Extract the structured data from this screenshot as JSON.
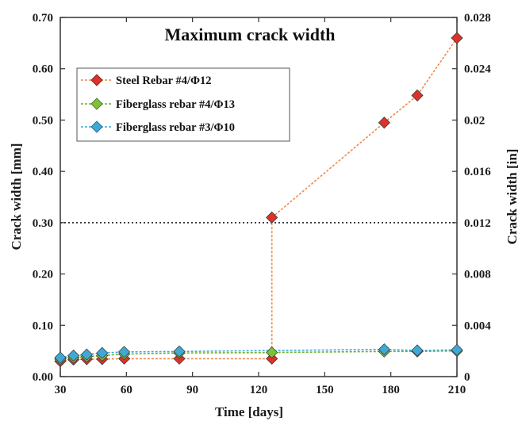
{
  "chart_data": {
    "type": "line",
    "title": "Maximum crack width",
    "xlabel": "Time [days]",
    "ylabel": "Crack width [mm]",
    "y2label": "Crack width [in]",
    "xlim": [
      30,
      210
    ],
    "ylim": [
      0,
      0.7
    ],
    "y2lim": [
      0,
      0.028
    ],
    "xticks": [
      "30",
      "60",
      "90",
      "120",
      "150",
      "180",
      "210"
    ],
    "yticks": [
      "0.00",
      "0.10",
      "0.20",
      "0.30",
      "0.40",
      "0.50",
      "0.60",
      "0.70"
    ],
    "y2ticks": [
      "0",
      "0.004",
      "0.008",
      "0.012",
      "0.016",
      "0.02",
      "0.024",
      "0.028"
    ],
    "grid": false,
    "legend_position": "upper-left",
    "reference_line": {
      "y": 0.3,
      "style": "dotted",
      "color": "#333333"
    },
    "series": [
      {
        "name": "Steel Rebar #4/Φ12",
        "color": "#d9332b",
        "line_color": "#f08a4b",
        "x": [
          30,
          36,
          42,
          49,
          59,
          84,
          126,
          126,
          177,
          192,
          210
        ],
        "y": [
          0.03,
          0.033,
          0.034,
          0.034,
          0.035,
          0.035,
          0.035,
          0.31,
          0.495,
          0.548,
          0.66
        ]
      },
      {
        "name": "Fiberglass rebar #4/Φ13",
        "color": "#7fbf3a",
        "line_color": "#6fae32",
        "x": [
          30,
          36,
          42,
          49,
          59,
          84,
          126,
          177,
          192,
          210
        ],
        "y": [
          0.034,
          0.037,
          0.039,
          0.041,
          0.044,
          0.046,
          0.047,
          0.049,
          0.049,
          0.05
        ]
      },
      {
        "name": "Fiberglass rebar #3/Φ10",
        "color": "#3fa9d6",
        "line_color": "#3fa9d6",
        "x": [
          30,
          36,
          42,
          49,
          59,
          84,
          177,
          192,
          210
        ],
        "y": [
          0.037,
          0.041,
          0.043,
          0.046,
          0.048,
          0.049,
          0.053,
          0.051,
          0.052
        ]
      }
    ]
  }
}
